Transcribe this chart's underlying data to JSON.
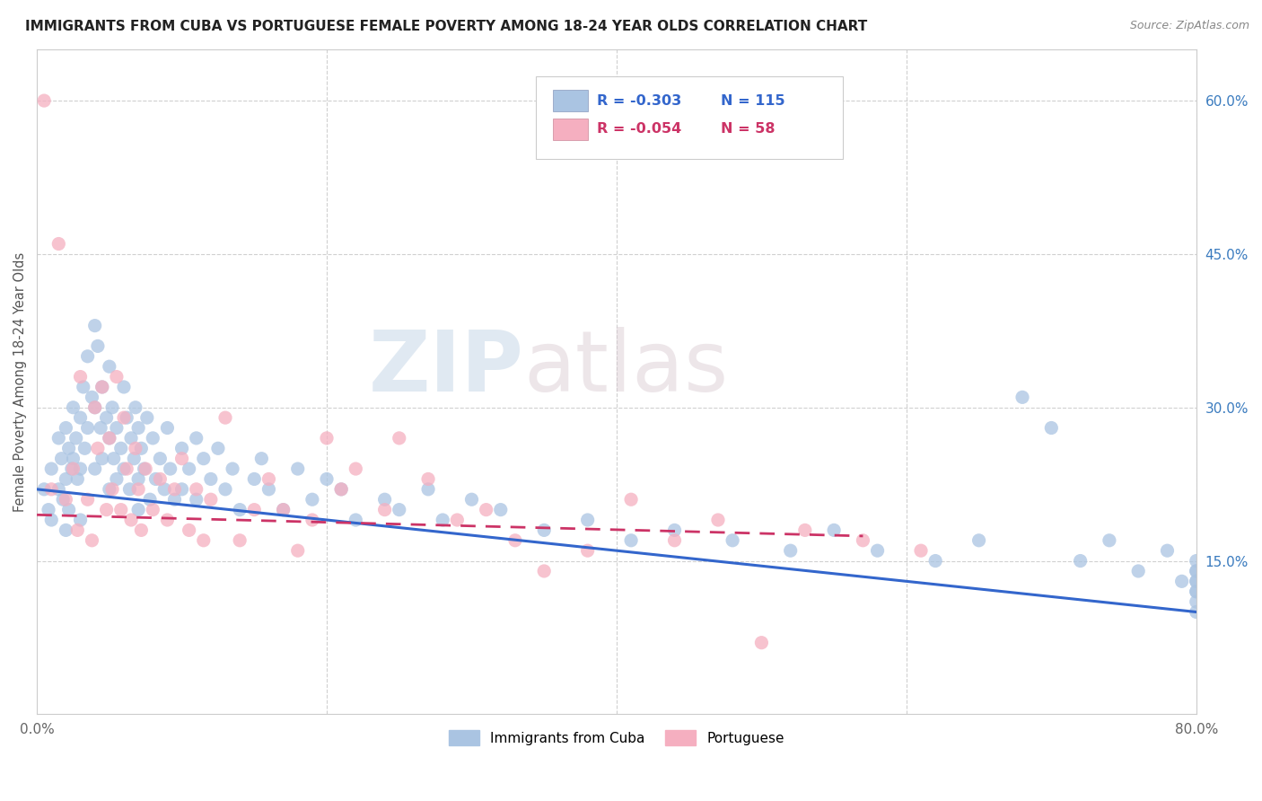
{
  "title": "IMMIGRANTS FROM CUBA VS PORTUGUESE FEMALE POVERTY AMONG 18-24 YEAR OLDS CORRELATION CHART",
  "source": "Source: ZipAtlas.com",
  "ylabel": "Female Poverty Among 18-24 Year Olds",
  "xlim": [
    0.0,
    0.8
  ],
  "ylim": [
    0.0,
    0.65
  ],
  "legend_r1": "R = -0.303",
  "legend_n1": "N = 115",
  "legend_r2": "R = -0.054",
  "legend_n2": "N = 58",
  "legend_label1": "Immigrants from Cuba",
  "legend_label2": "Portuguese",
  "color_cuba": "#aac4e2",
  "color_portuguese": "#f5afc0",
  "color_cuba_line": "#3366cc",
  "color_portuguese_line": "#cc3366",
  "watermark_zip": "ZIP",
  "watermark_atlas": "atlas",
  "cuba_x": [
    0.005,
    0.008,
    0.01,
    0.01,
    0.015,
    0.015,
    0.017,
    0.018,
    0.02,
    0.02,
    0.02,
    0.022,
    0.022,
    0.024,
    0.025,
    0.025,
    0.027,
    0.028,
    0.03,
    0.03,
    0.03,
    0.032,
    0.033,
    0.035,
    0.035,
    0.038,
    0.04,
    0.04,
    0.04,
    0.042,
    0.044,
    0.045,
    0.045,
    0.048,
    0.05,
    0.05,
    0.05,
    0.052,
    0.053,
    0.055,
    0.055,
    0.058,
    0.06,
    0.06,
    0.062,
    0.064,
    0.065,
    0.067,
    0.068,
    0.07,
    0.07,
    0.07,
    0.072,
    0.074,
    0.076,
    0.078,
    0.08,
    0.082,
    0.085,
    0.088,
    0.09,
    0.092,
    0.095,
    0.1,
    0.1,
    0.105,
    0.11,
    0.11,
    0.115,
    0.12,
    0.125,
    0.13,
    0.135,
    0.14,
    0.15,
    0.155,
    0.16,
    0.17,
    0.18,
    0.19,
    0.2,
    0.21,
    0.22,
    0.24,
    0.25,
    0.27,
    0.28,
    0.3,
    0.32,
    0.35,
    0.38,
    0.41,
    0.44,
    0.48,
    0.52,
    0.55,
    0.58,
    0.62,
    0.65,
    0.68,
    0.7,
    0.72,
    0.74,
    0.76,
    0.78,
    0.79,
    0.8,
    0.8,
    0.8,
    0.8,
    0.8,
    0.8,
    0.8,
    0.8,
    0.8
  ],
  "cuba_y": [
    0.22,
    0.2,
    0.24,
    0.19,
    0.27,
    0.22,
    0.25,
    0.21,
    0.28,
    0.23,
    0.18,
    0.26,
    0.2,
    0.24,
    0.3,
    0.25,
    0.27,
    0.23,
    0.29,
    0.24,
    0.19,
    0.32,
    0.26,
    0.35,
    0.28,
    0.31,
    0.38,
    0.3,
    0.24,
    0.36,
    0.28,
    0.32,
    0.25,
    0.29,
    0.34,
    0.27,
    0.22,
    0.3,
    0.25,
    0.28,
    0.23,
    0.26,
    0.32,
    0.24,
    0.29,
    0.22,
    0.27,
    0.25,
    0.3,
    0.28,
    0.23,
    0.2,
    0.26,
    0.24,
    0.29,
    0.21,
    0.27,
    0.23,
    0.25,
    0.22,
    0.28,
    0.24,
    0.21,
    0.26,
    0.22,
    0.24,
    0.27,
    0.21,
    0.25,
    0.23,
    0.26,
    0.22,
    0.24,
    0.2,
    0.23,
    0.25,
    0.22,
    0.2,
    0.24,
    0.21,
    0.23,
    0.22,
    0.19,
    0.21,
    0.2,
    0.22,
    0.19,
    0.21,
    0.2,
    0.18,
    0.19,
    0.17,
    0.18,
    0.17,
    0.16,
    0.18,
    0.16,
    0.15,
    0.17,
    0.31,
    0.28,
    0.15,
    0.17,
    0.14,
    0.16,
    0.13,
    0.15,
    0.14,
    0.12,
    0.13,
    0.14,
    0.11,
    0.13,
    0.12,
    0.1
  ],
  "port_x": [
    0.005,
    0.01,
    0.015,
    0.02,
    0.025,
    0.028,
    0.03,
    0.035,
    0.038,
    0.04,
    0.042,
    0.045,
    0.048,
    0.05,
    0.052,
    0.055,
    0.058,
    0.06,
    0.062,
    0.065,
    0.068,
    0.07,
    0.072,
    0.075,
    0.08,
    0.085,
    0.09,
    0.095,
    0.1,
    0.105,
    0.11,
    0.115,
    0.12,
    0.13,
    0.14,
    0.15,
    0.16,
    0.17,
    0.18,
    0.19,
    0.2,
    0.21,
    0.22,
    0.24,
    0.25,
    0.27,
    0.29,
    0.31,
    0.33,
    0.35,
    0.38,
    0.41,
    0.44,
    0.47,
    0.5,
    0.53,
    0.57,
    0.61
  ],
  "port_y": [
    0.6,
    0.22,
    0.46,
    0.21,
    0.24,
    0.18,
    0.33,
    0.21,
    0.17,
    0.3,
    0.26,
    0.32,
    0.2,
    0.27,
    0.22,
    0.33,
    0.2,
    0.29,
    0.24,
    0.19,
    0.26,
    0.22,
    0.18,
    0.24,
    0.2,
    0.23,
    0.19,
    0.22,
    0.25,
    0.18,
    0.22,
    0.17,
    0.21,
    0.29,
    0.17,
    0.2,
    0.23,
    0.2,
    0.16,
    0.19,
    0.27,
    0.22,
    0.24,
    0.2,
    0.27,
    0.23,
    0.19,
    0.2,
    0.17,
    0.14,
    0.16,
    0.21,
    0.17,
    0.19,
    0.07,
    0.18,
    0.17,
    0.16
  ]
}
